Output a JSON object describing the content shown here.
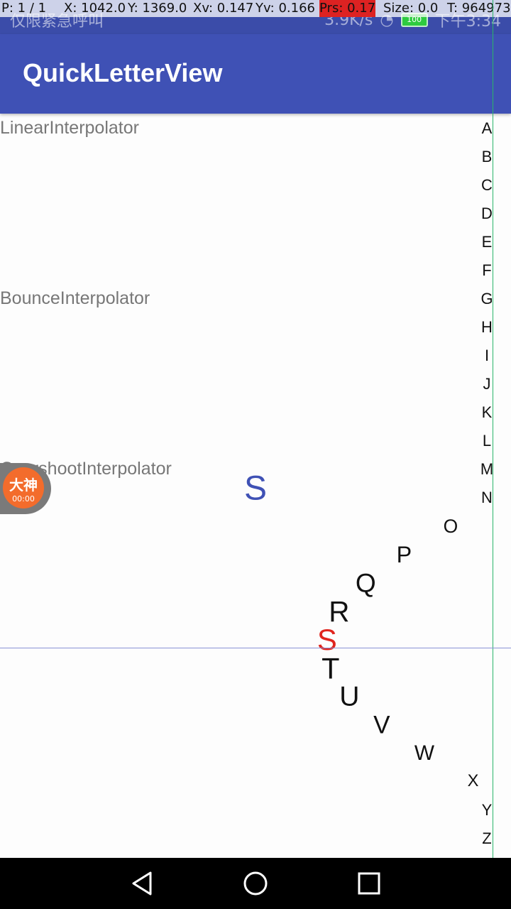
{
  "status_bar": {
    "left_text": "仅限紧急呼叫",
    "speed": "3.9K/s",
    "time": "下午3:34",
    "battery": "100"
  },
  "pointer_overlay": {
    "pointer": "P: 1 / 1",
    "x": "X: 1042.0",
    "y": "Y: 1369.0",
    "xv": "Xv: 0.147",
    "yv": "Yv: 0.166",
    "prs": "Prs: 0.17",
    "size": "Size: 0.0",
    "t": "T: 964973"
  },
  "app_bar": {
    "title": "QuickLetterView"
  },
  "interpolators": [
    {
      "label": "LinearInterpolator"
    },
    {
      "label": "BounceInterpolator"
    },
    {
      "label": "OvershootInterpolator"
    }
  ],
  "center_letter": "S",
  "selected_letter": "S",
  "letters": [
    "A",
    "B",
    "C",
    "D",
    "E",
    "F",
    "G",
    "H",
    "I",
    "J",
    "K",
    "L",
    "M",
    "N",
    "O",
    "P",
    "Q",
    "R",
    "S",
    "T",
    "U",
    "V",
    "W",
    "X",
    "Y",
    "Z"
  ],
  "floating_widget": {
    "name": "大神",
    "time": "00:00"
  },
  "colors": {
    "primary": "#3f51b5",
    "selected_letter": "#e0251e",
    "letter": "#111111"
  },
  "icons": {
    "nav_back": "back-triangle-icon",
    "nav_home": "home-circle-icon",
    "nav_recents": "recents-square-icon"
  }
}
